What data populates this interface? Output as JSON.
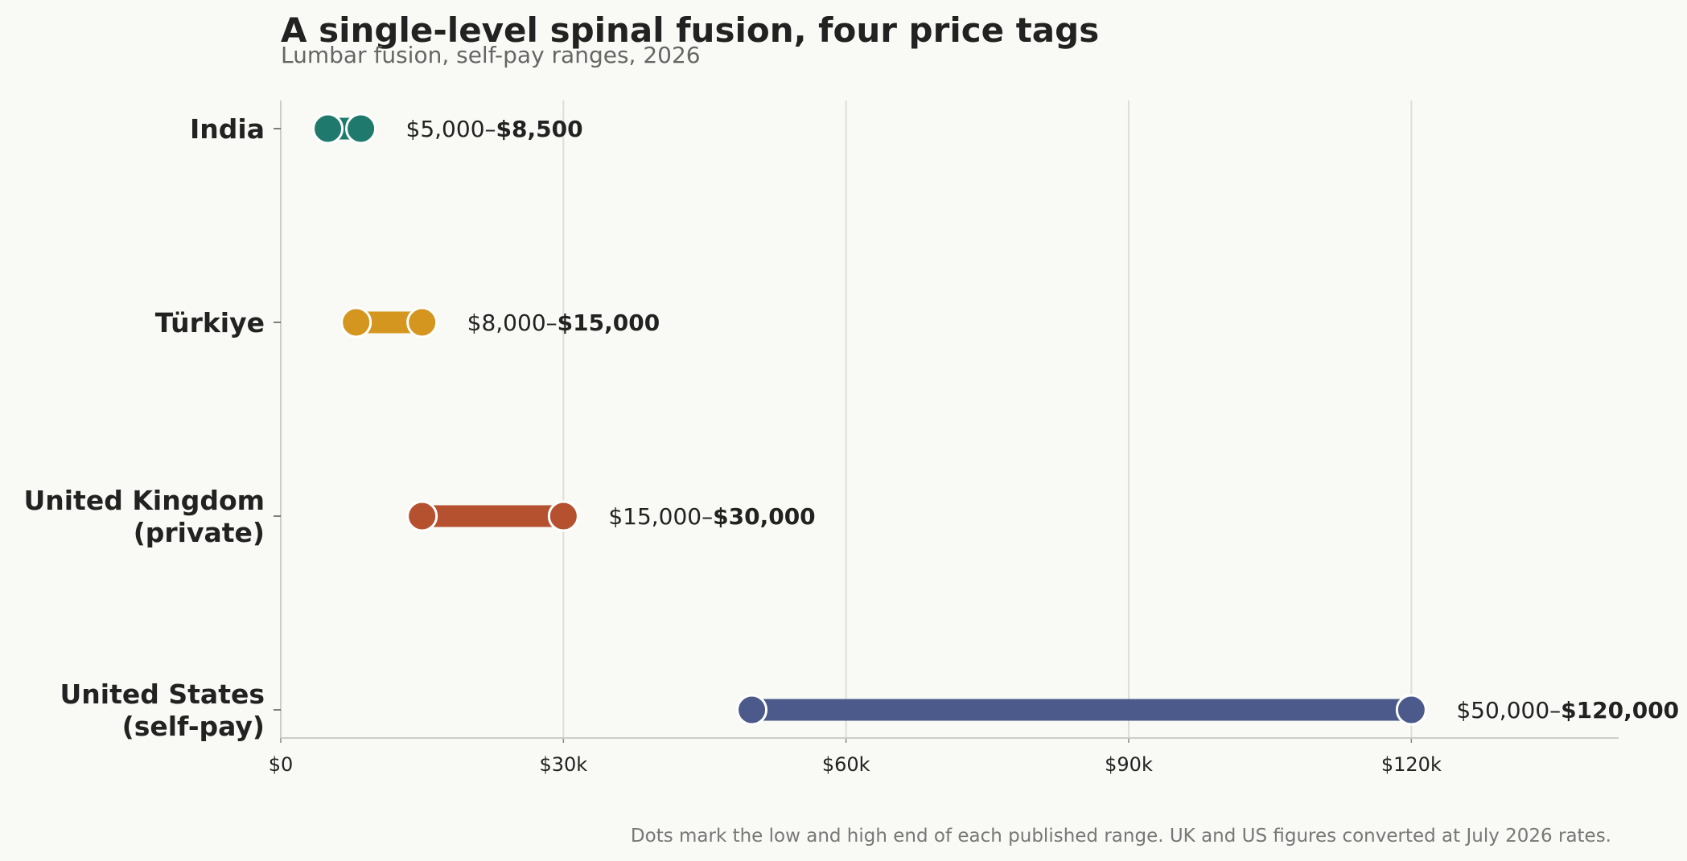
{
  "title": "A single-level spinal fusion, four price tags",
  "subtitle": "Lumbar fusion, self-pay ranges, 2026",
  "footnote": "Dots mark the low and high end of each published range. UK and US figures converted at July 2026 rates.",
  "chart_data": {
    "type": "dumbbell",
    "x_ticks": [
      "$0",
      "$30k",
      "$60k",
      "$90k",
      "$120k"
    ],
    "x_tick_values": [
      0,
      30000,
      60000,
      90000,
      120000
    ],
    "xlim": [
      0,
      142000
    ],
    "grid": "vertical",
    "rows": [
      {
        "label": [
          "India"
        ],
        "low": 5000,
        "high": 8500,
        "low_text": "$5,000–",
        "high_text": "$8,500",
        "color": "#1f7a6d"
      },
      {
        "label": [
          "Türkiye"
        ],
        "low": 8000,
        "high": 15000,
        "low_text": "$8,000–",
        "high_text": "$15,000",
        "color": "#d4961f"
      },
      {
        "label": [
          "United Kingdom",
          "(private)"
        ],
        "low": 15000,
        "high": 30000,
        "low_text": "$15,000–",
        "high_text": "$30,000",
        "color": "#b5512f"
      },
      {
        "label": [
          "United States",
          "(self-pay)"
        ],
        "low": 50000,
        "high": 120000,
        "low_text": "$50,000–",
        "high_text": "$120,000",
        "color": "#4b5a8a"
      }
    ]
  }
}
